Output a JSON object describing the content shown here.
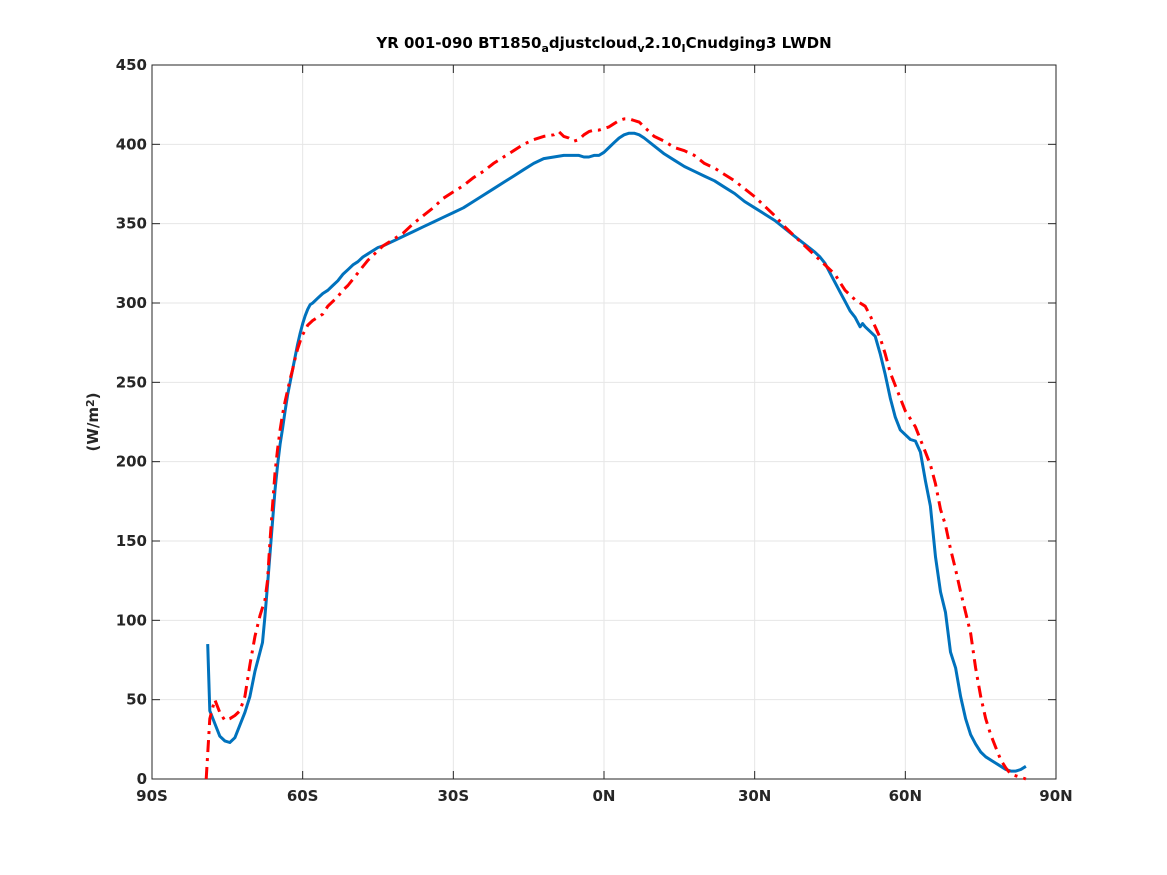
{
  "chart_data": {
    "type": "line",
    "title": {
      "parts": [
        {
          "text": "YR 001-090 BT1850",
          "sub": false
        },
        {
          "text": "a",
          "sub": true
        },
        {
          "text": "djustcloud",
          "sub": false
        },
        {
          "text": "v",
          "sub": true
        },
        {
          "text": "2.10",
          "sub": false
        },
        {
          "text": "I",
          "sub": true
        },
        {
          "text": "Cnudging3 LWDN",
          "sub": false
        }
      ]
    },
    "ylabel": {
      "prefix": "(W/m",
      "sup": "2",
      "suffix": ")"
    },
    "xlabel": "",
    "xlim": [
      -90,
      90
    ],
    "ylim": [
      0,
      450
    ],
    "x_ticks": [
      {
        "value": -90,
        "label": "90S"
      },
      {
        "value": -60,
        "label": "60S"
      },
      {
        "value": -30,
        "label": "30S"
      },
      {
        "value": 0,
        "label": "0N"
      },
      {
        "value": 30,
        "label": "30N"
      },
      {
        "value": 60,
        "label": "60N"
      },
      {
        "value": 90,
        "label": "90N"
      }
    ],
    "y_ticks": [
      0,
      50,
      100,
      150,
      200,
      250,
      300,
      350,
      400,
      450
    ],
    "grid": true,
    "legend": "none",
    "series": [
      {
        "style": "solid",
        "color": "#0072BD",
        "points": [
          [
            -78.9,
            85
          ],
          [
            -78.5,
            43
          ],
          [
            -77.5,
            35
          ],
          [
            -76.5,
            27
          ],
          [
            -75.5,
            24
          ],
          [
            -74.5,
            23
          ],
          [
            -73.5,
            26
          ],
          [
            -72.5,
            34
          ],
          [
            -71.5,
            42
          ],
          [
            -70.5,
            52
          ],
          [
            -69.5,
            68
          ],
          [
            -68.5,
            80
          ],
          [
            -68,
            86
          ],
          [
            -67.5,
            103
          ],
          [
            -67,
            122
          ],
          [
            -66.5,
            142
          ],
          [
            -66,
            162
          ],
          [
            -65.5,
            182
          ],
          [
            -65,
            198
          ],
          [
            -64.5,
            211
          ],
          [
            -64,
            221
          ],
          [
            -63.5,
            232
          ],
          [
            -63,
            242
          ],
          [
            -62.5,
            250
          ],
          [
            -62,
            258
          ],
          [
            -61.5,
            266
          ],
          [
            -61,
            274
          ],
          [
            -60.5,
            281
          ],
          [
            -60,
            287
          ],
          [
            -59.5,
            292
          ],
          [
            -59,
            296
          ],
          [
            -58.5,
            299
          ],
          [
            -58,
            300
          ],
          [
            -57,
            303
          ],
          [
            -56,
            306
          ],
          [
            -55,
            308
          ],
          [
            -54,
            311
          ],
          [
            -53,
            314
          ],
          [
            -52,
            318
          ],
          [
            -51,
            321
          ],
          [
            -50,
            324
          ],
          [
            -49,
            326
          ],
          [
            -48,
            329
          ],
          [
            -47,
            331
          ],
          [
            -46,
            333
          ],
          [
            -45,
            335
          ],
          [
            -44,
            336
          ],
          [
            -42,
            339
          ],
          [
            -40,
            342
          ],
          [
            -38,
            345
          ],
          [
            -36,
            348
          ],
          [
            -34,
            351
          ],
          [
            -32,
            354
          ],
          [
            -30,
            357
          ],
          [
            -28,
            360
          ],
          [
            -26,
            364
          ],
          [
            -24,
            368
          ],
          [
            -22,
            372
          ],
          [
            -20,
            376
          ],
          [
            -18,
            380
          ],
          [
            -16,
            384
          ],
          [
            -14,
            388
          ],
          [
            -12,
            391
          ],
          [
            -10,
            392
          ],
          [
            -8,
            393
          ],
          [
            -6,
            393
          ],
          [
            -5,
            393
          ],
          [
            -4,
            392
          ],
          [
            -3,
            392
          ],
          [
            -2,
            393
          ],
          [
            -1,
            393
          ],
          [
            0,
            395
          ],
          [
            1,
            398
          ],
          [
            2,
            401
          ],
          [
            3,
            404
          ],
          [
            4,
            406
          ],
          [
            5,
            407
          ],
          [
            6,
            407
          ],
          [
            7,
            406
          ],
          [
            8,
            404
          ],
          [
            10,
            399
          ],
          [
            12,
            394
          ],
          [
            14,
            390
          ],
          [
            16,
            386
          ],
          [
            18,
            383
          ],
          [
            20,
            380
          ],
          [
            22,
            377
          ],
          [
            24,
            373
          ],
          [
            26,
            369
          ],
          [
            28,
            364
          ],
          [
            30,
            360
          ],
          [
            32,
            356
          ],
          [
            34,
            352
          ],
          [
            36,
            347
          ],
          [
            38,
            342
          ],
          [
            40,
            337
          ],
          [
            42,
            332
          ],
          [
            43,
            329
          ],
          [
            44,
            325
          ],
          [
            45,
            319
          ],
          [
            46,
            313
          ],
          [
            47,
            307
          ],
          [
            48,
            301
          ],
          [
            49,
            295
          ],
          [
            50,
            291
          ],
          [
            51,
            285
          ],
          [
            51.5,
            287
          ],
          [
            52,
            285
          ],
          [
            53,
            282
          ],
          [
            54,
            279
          ],
          [
            55,
            268
          ],
          [
            56,
            255
          ],
          [
            57,
            240
          ],
          [
            58,
            228
          ],
          [
            59,
            220
          ],
          [
            60,
            217
          ],
          [
            61,
            214
          ],
          [
            62,
            213
          ],
          [
            63,
            206
          ],
          [
            64,
            188
          ],
          [
            65,
            172
          ],
          [
            66,
            140
          ],
          [
            67,
            118
          ],
          [
            68,
            105
          ],
          [
            69,
            80
          ],
          [
            70,
            70
          ],
          [
            71,
            52
          ],
          [
            72,
            38
          ],
          [
            73,
            28
          ],
          [
            74,
            22
          ],
          [
            75,
            17
          ],
          [
            76,
            14
          ],
          [
            77,
            12
          ],
          [
            78,
            10
          ],
          [
            79,
            8
          ],
          [
            80,
            6
          ],
          [
            81,
            5
          ],
          [
            82,
            5
          ],
          [
            83,
            6
          ],
          [
            84,
            8
          ]
        ]
      },
      {
        "style": "dashdot",
        "color": "#FF0000",
        "points": [
          [
            -79.2,
            0
          ],
          [
            -78.5,
            38
          ],
          [
            -77.5,
            50
          ],
          [
            -76.5,
            42
          ],
          [
            -75.5,
            37
          ],
          [
            -74.5,
            38
          ],
          [
            -73.5,
            40
          ],
          [
            -72.5,
            43
          ],
          [
            -71.5,
            52
          ],
          [
            -70.5,
            72
          ],
          [
            -69.5,
            90
          ],
          [
            -68.5,
            103
          ],
          [
            -67.5,
            113
          ],
          [
            -67,
            125
          ],
          [
            -66.5,
            150
          ],
          [
            -66,
            172
          ],
          [
            -65.5,
            193
          ],
          [
            -65,
            208
          ],
          [
            -64.5,
            220
          ],
          [
            -64,
            230
          ],
          [
            -63.5,
            238
          ],
          [
            -63,
            245
          ],
          [
            -62.5,
            252
          ],
          [
            -62,
            258
          ],
          [
            -61.5,
            265
          ],
          [
            -61,
            271
          ],
          [
            -60.5,
            276
          ],
          [
            -60,
            280
          ],
          [
            -59.5,
            283
          ],
          [
            -59,
            286
          ],
          [
            -58,
            289
          ],
          [
            -57,
            291
          ],
          [
            -56,
            293
          ],
          [
            -55,
            298
          ],
          [
            -54,
            301
          ],
          [
            -53,
            304
          ],
          [
            -52,
            308
          ],
          [
            -51,
            311
          ],
          [
            -50,
            315
          ],
          [
            -49,
            319
          ],
          [
            -48,
            323
          ],
          [
            -47,
            327
          ],
          [
            -46,
            330
          ],
          [
            -45,
            333
          ],
          [
            -44,
            336
          ],
          [
            -42,
            340
          ],
          [
            -40,
            344
          ],
          [
            -38,
            350
          ],
          [
            -36,
            355
          ],
          [
            -34,
            360
          ],
          [
            -32,
            366
          ],
          [
            -30,
            370
          ],
          [
            -28,
            374
          ],
          [
            -26,
            379
          ],
          [
            -24,
            383
          ],
          [
            -22,
            388
          ],
          [
            -20,
            392
          ],
          [
            -18,
            396
          ],
          [
            -16,
            400
          ],
          [
            -14,
            403
          ],
          [
            -12,
            405
          ],
          [
            -10,
            406
          ],
          [
            -9,
            408
          ],
          [
            -8,
            405
          ],
          [
            -7,
            404
          ],
          [
            -6,
            402
          ],
          [
            -5,
            403
          ],
          [
            -4,
            406
          ],
          [
            -3,
            408
          ],
          [
            -2,
            409
          ],
          [
            -1,
            409
          ],
          [
            0,
            410
          ],
          [
            1,
            411
          ],
          [
            2,
            413
          ],
          [
            3,
            415
          ],
          [
            4,
            416
          ],
          [
            5,
            416
          ],
          [
            6,
            415
          ],
          [
            7,
            414
          ],
          [
            8,
            411
          ],
          [
            10,
            405
          ],
          [
            12,
            402
          ],
          [
            14,
            398
          ],
          [
            16,
            396
          ],
          [
            18,
            393
          ],
          [
            20,
            388
          ],
          [
            22,
            385
          ],
          [
            24,
            381
          ],
          [
            26,
            377
          ],
          [
            28,
            372
          ],
          [
            30,
            367
          ],
          [
            32,
            361
          ],
          [
            34,
            355
          ],
          [
            36,
            348
          ],
          [
            38,
            342
          ],
          [
            40,
            336
          ],
          [
            42,
            330
          ],
          [
            44,
            324
          ],
          [
            46,
            318
          ],
          [
            47,
            313
          ],
          [
            48,
            308
          ],
          [
            50,
            302
          ],
          [
            52,
            298
          ],
          [
            53,
            292
          ],
          [
            54,
            285
          ],
          [
            55,
            278
          ],
          [
            56,
            268
          ],
          [
            57,
            256
          ],
          [
            58,
            248
          ],
          [
            59,
            240
          ],
          [
            60,
            232
          ],
          [
            61,
            227
          ],
          [
            62,
            222
          ],
          [
            63,
            214
          ],
          [
            64,
            206
          ],
          [
            65,
            198
          ],
          [
            66,
            186
          ],
          [
            67,
            170
          ],
          [
            68,
            160
          ],
          [
            69,
            145
          ],
          [
            70,
            132
          ],
          [
            71,
            118
          ],
          [
            72,
            105
          ],
          [
            73,
            92
          ],
          [
            74,
            70
          ],
          [
            75,
            52
          ],
          [
            76,
            38
          ],
          [
            77,
            28
          ],
          [
            78,
            20
          ],
          [
            79,
            12
          ],
          [
            80,
            7
          ],
          [
            81,
            3
          ],
          [
            82,
            2
          ],
          [
            84,
            0
          ]
        ]
      }
    ]
  }
}
